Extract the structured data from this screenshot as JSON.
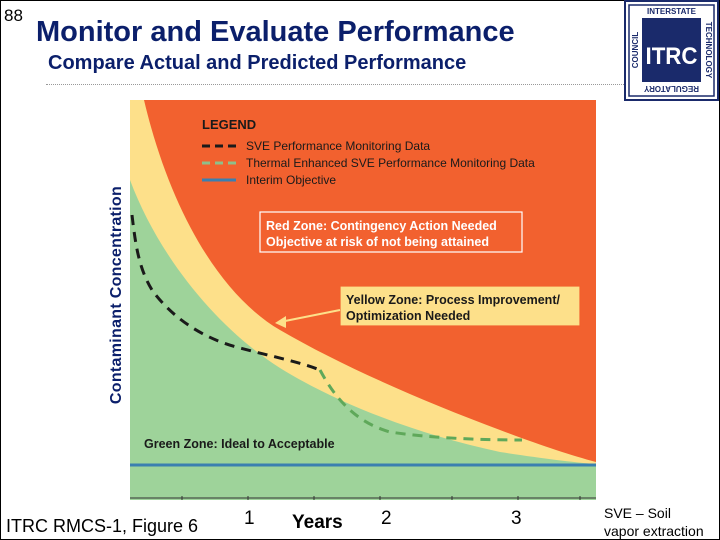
{
  "slide_number": "88",
  "title": "Monitor and Evaluate Performance",
  "subtitle": "Compare Actual and Predicted Performance",
  "logo": {
    "text": "ITRC",
    "top_text": "INTERSTATE",
    "right_text": "TECHNOLOGY",
    "bottom_text": "REGULATORY",
    "left_text": "COUNCIL"
  },
  "diagram": {
    "y_axis_label": "Contaminant Concentration",
    "legend": {
      "title": "LEGEND",
      "items": [
        {
          "label": "SVE Performance Monitoring Data",
          "style": "dashed",
          "color": "#1a1a1a"
        },
        {
          "label": "Thermal Enhanced SVE Performance Monitoring Data",
          "style": "dashed",
          "color": "#8fbf8a"
        },
        {
          "label": "Interim Objective",
          "style": "solid",
          "color": "#3a7fb0"
        }
      ]
    },
    "zones": {
      "red": {
        "line1": "Red Zone: Contingency Action Needed",
        "line2": "Objective at risk of not being attained",
        "color": "#f2612f"
      },
      "yellow": {
        "line1": "Yellow Zone: Process Improvement/",
        "line2": "Optimization Needed",
        "color": "#fde08a"
      },
      "green": {
        "label": "Green Zone: Ideal to Acceptable",
        "color": "#9ed39a"
      }
    },
    "x_ticks": [
      "1",
      "2",
      "3"
    ],
    "x_axis_label": "Years"
  },
  "footer": {
    "caption": "ITRC RMCS-1, Figure 6",
    "note_line1": "SVE – Soil",
    "note_line2": "vapor extraction"
  }
}
